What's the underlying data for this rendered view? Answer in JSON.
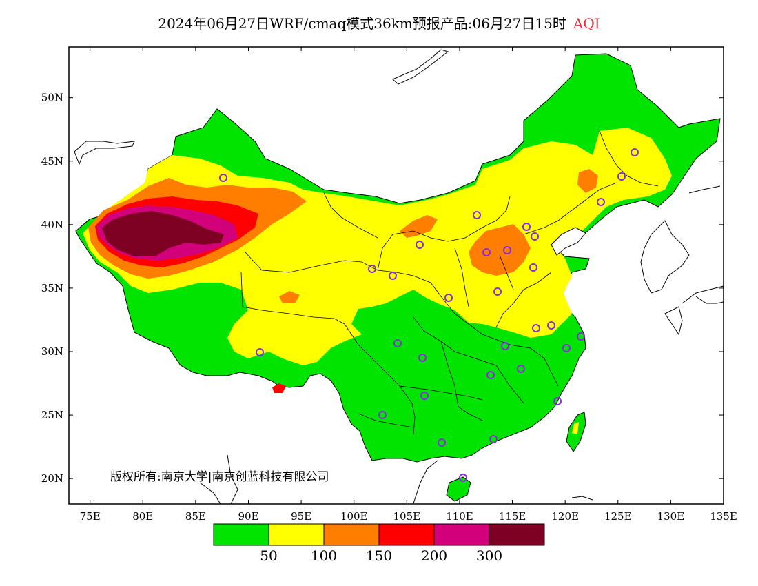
{
  "title": {
    "main": "2024年06月27日WRF/cmaq模式36km预报产品:06月27日15时",
    "product": "AQI",
    "product_color": "#e8303a"
  },
  "map": {
    "lon_range": [
      73,
      135
    ],
    "lat_range": [
      18,
      54
    ],
    "x_ticks": [
      "75E",
      "80E",
      "85E",
      "90E",
      "95E",
      "100E",
      "105E",
      "110E",
      "115E",
      "120E",
      "125E",
      "130E",
      "135E"
    ],
    "y_ticks": [
      "50N",
      "45N",
      "40N",
      "35N",
      "30N",
      "25N",
      "20N"
    ],
    "copyright": "版权所有:南京大学|南京创蓝科技有限公司",
    "station_marker_color": "#8a2be2"
  },
  "legend": {
    "colors": [
      "#00e400",
      "#ffff00",
      "#ff7e00",
      "#ff0000",
      "#d2007a",
      "#7e0023"
    ],
    "levels": [
      "50",
      "100",
      "150",
      "200",
      "300"
    ]
  }
}
